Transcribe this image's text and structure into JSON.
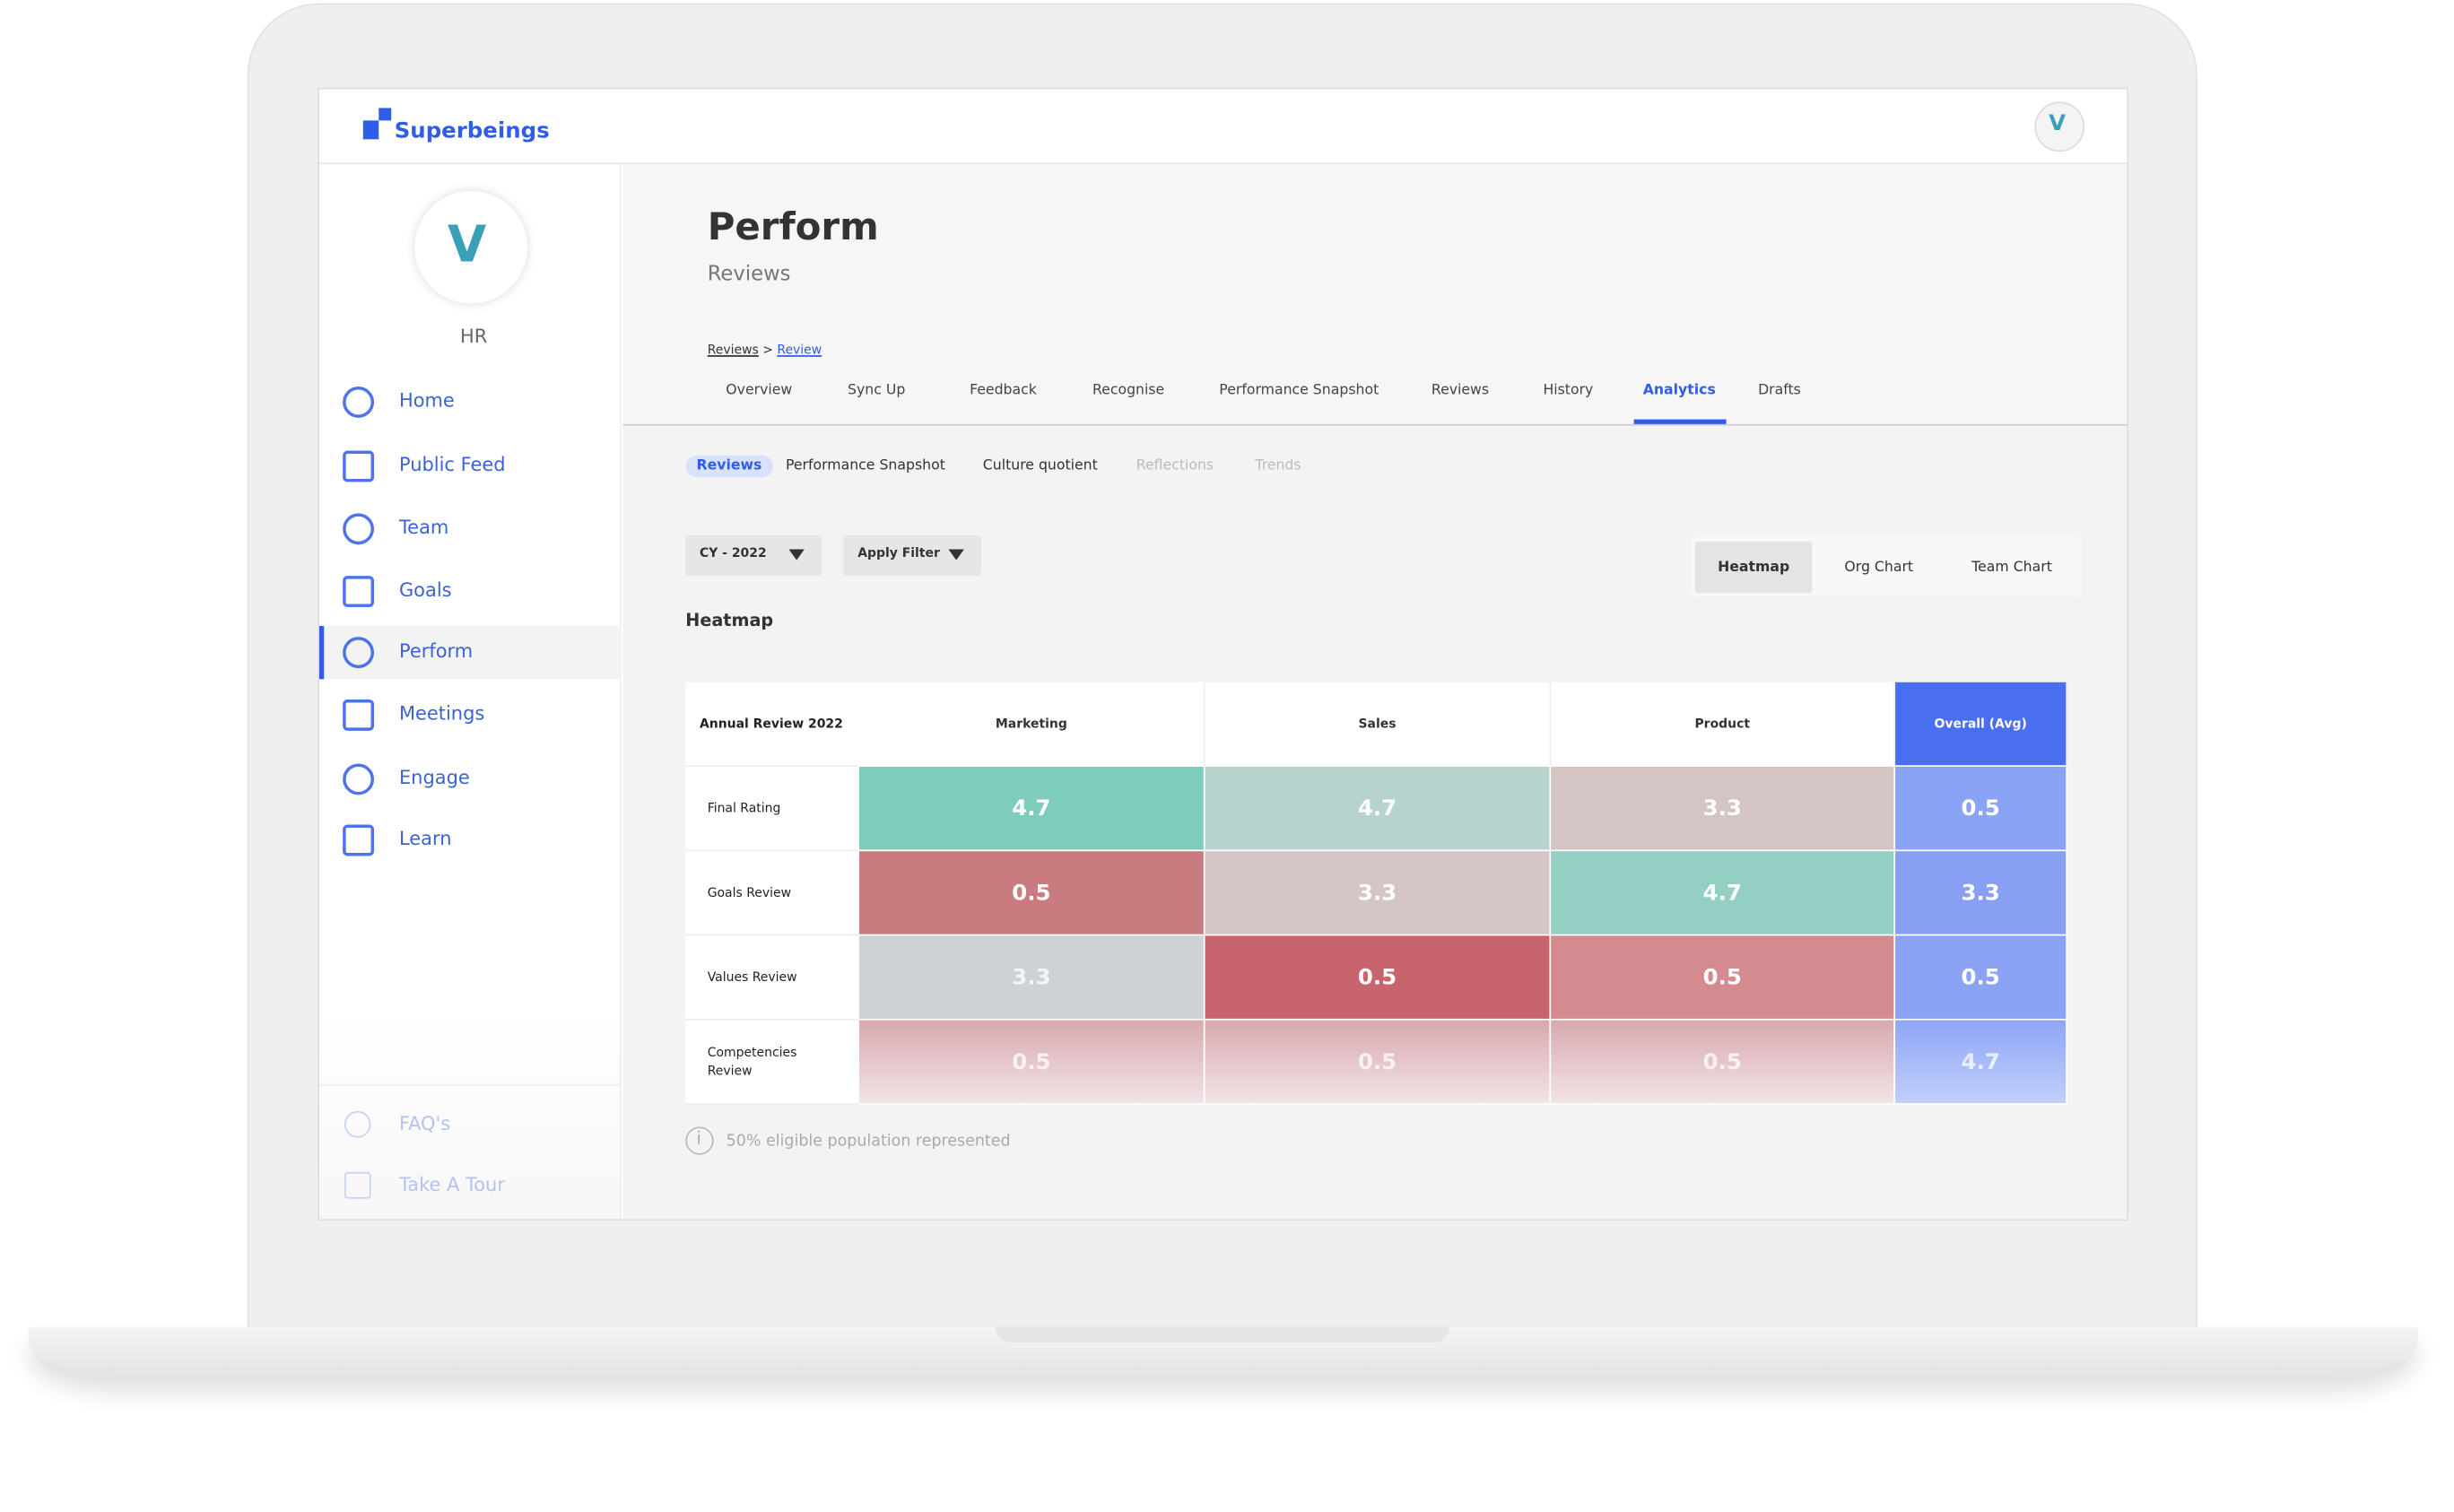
{
  "header": {
    "brand": "Superbeings"
  },
  "sidebar": {
    "role": "HR",
    "nav": [
      "Home",
      "Public Feed",
      "Team",
      "Goals",
      "Perform",
      "Meetings",
      "Engage",
      "Learn"
    ],
    "footer": [
      "FAQ's",
      "Take A Tour"
    ]
  },
  "page": {
    "title": "Perform",
    "subtitle": "Reviews",
    "breadcrumb": {
      "items": [
        "Reviews",
        "Review"
      ],
      "separator": ">"
    },
    "tabs": [
      "Overview",
      "Sync Up",
      "Feedback",
      "Recognise",
      "Performance Snapshot",
      "Reviews",
      "History",
      "Analytics",
      "Drafts"
    ],
    "subtabs": [
      "Reviews",
      "Performance Snapshot",
      "Culture quotient",
      "Reflections",
      "Trends"
    ],
    "filters": [
      "CY - 2022",
      "Apply Filter"
    ],
    "views": [
      "Heatmap",
      "Org Chart",
      "Team Chart"
    ]
  },
  "heatmap": {
    "title": "Heatmap",
    "corner": "Annual Review 2022",
    "columns": [
      "Marketing",
      "Sales",
      "Product",
      "Overall (Avg)"
    ],
    "rows": [
      {
        "label": "Final Rating",
        "values": [
          4.7,
          4.7,
          3.3,
          0.5
        ]
      },
      {
        "label": "Goals Review",
        "values": [
          0.5,
          3.3,
          4.7,
          3.3
        ]
      },
      {
        "label": "Values Review",
        "values": [
          3.3,
          0.5,
          0.5,
          0.5
        ]
      },
      {
        "label": "Competencies Review",
        "values": [
          0.5,
          0.5,
          0.5,
          4.7
        ]
      }
    ],
    "footnote": "50% eligible population represented"
  }
}
